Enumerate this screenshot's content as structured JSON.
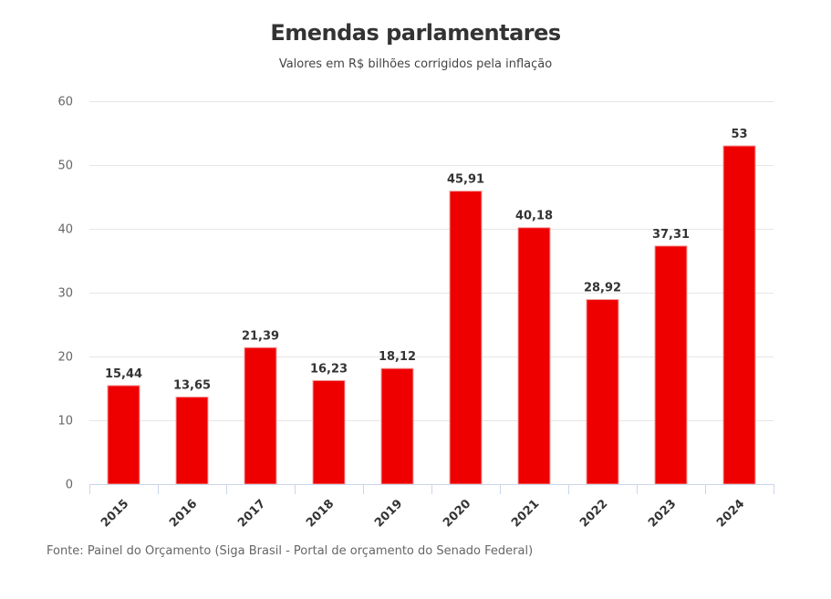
{
  "chart_data": {
    "type": "bar",
    "title": "Emendas parlamentares",
    "subtitle": "Valores em R$ bilhões corrigidos pela inflação",
    "xlabel": "",
    "ylabel": "",
    "categories": [
      "2015",
      "2016",
      "2017",
      "2018",
      "2019",
      "2020",
      "2021",
      "2022",
      "2023",
      "2024"
    ],
    "values": [
      15.44,
      13.65,
      21.39,
      16.23,
      18.12,
      45.91,
      40.18,
      28.92,
      37.31,
      53
    ],
    "data_labels": [
      "15,44",
      "13,65",
      "21,39",
      "16,23",
      "18,12",
      "45,91",
      "40,18",
      "28,92",
      "37,31",
      "53"
    ],
    "ylim": [
      0,
      60
    ],
    "yticks": [
      0,
      10,
      20,
      30,
      40,
      50,
      60
    ],
    "grid": true,
    "legend": "none",
    "bar_color": "#ee0000",
    "source": "Fonte: Painel do Orçamento (Siga Brasil - Portal de orçamento do Senado Federal)"
  }
}
